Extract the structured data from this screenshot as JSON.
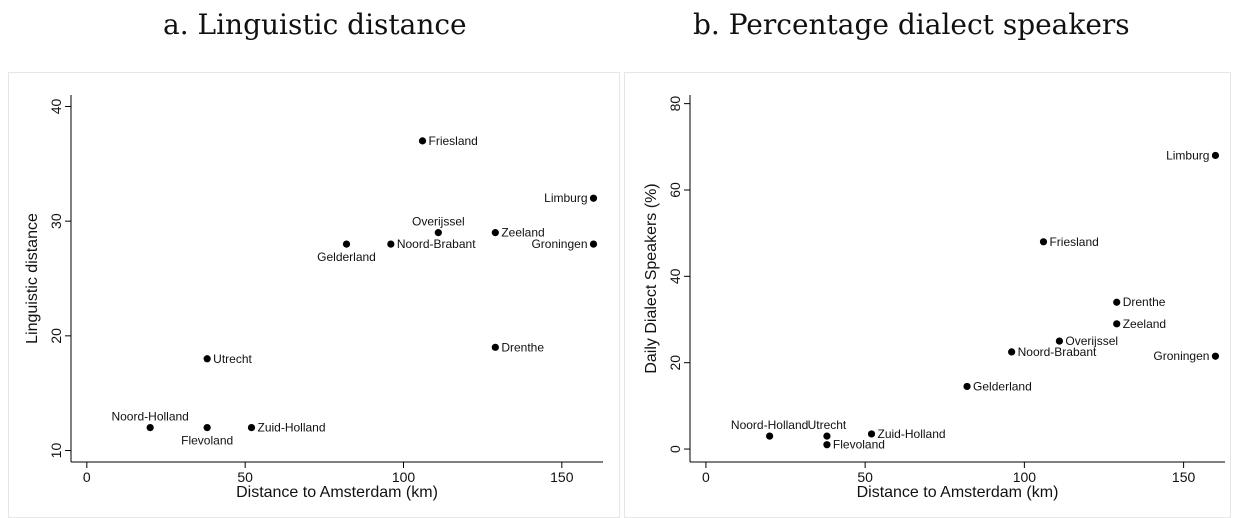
{
  "panels": {
    "a": {
      "title": "a. Linguistic distance"
    },
    "b": {
      "title": "b. Percentage dialect speakers"
    }
  },
  "colors": {
    "marker": "#000000",
    "axis": "#000000",
    "border": "#e6e6e6",
    "background": "#ffffff"
  },
  "chart_data": [
    {
      "type": "scatter",
      "xlabel": "Distance to Amsterdam (km)",
      "ylabel": "Linguistic distance",
      "xlim": [
        -5,
        163
      ],
      "ylim": [
        9,
        41
      ],
      "xticks": [
        0,
        50,
        100,
        150
      ],
      "yticks": [
        10,
        20,
        30,
        40
      ],
      "grid": false,
      "points": [
        {
          "label": "Friesland",
          "x": 106,
          "y": 37,
          "label_pos": "right"
        },
        {
          "label": "Limburg",
          "x": 160,
          "y": 32,
          "label_pos": "left"
        },
        {
          "label": "Overijssel",
          "x": 111,
          "y": 29,
          "label_pos": "above"
        },
        {
          "label": "Zeeland",
          "x": 129,
          "y": 29,
          "label_pos": "right"
        },
        {
          "label": "Gelderland",
          "x": 82,
          "y": 28,
          "label_pos": "below"
        },
        {
          "label": "Noord-Brabant",
          "x": 96,
          "y": 28,
          "label_pos": "right"
        },
        {
          "label": "Groningen",
          "x": 160,
          "y": 28,
          "label_pos": "left"
        },
        {
          "label": "Drenthe",
          "x": 129,
          "y": 19,
          "label_pos": "right"
        },
        {
          "label": "Utrecht",
          "x": 38,
          "y": 18,
          "label_pos": "right"
        },
        {
          "label": "Noord-Holland",
          "x": 20,
          "y": 12,
          "label_pos": "above"
        },
        {
          "label": "Flevoland",
          "x": 38,
          "y": 12,
          "label_pos": "below"
        },
        {
          "label": "Zuid-Holland",
          "x": 52,
          "y": 12,
          "label_pos": "right"
        }
      ]
    },
    {
      "type": "scatter",
      "xlabel": "Distance to Amsterdam (km)",
      "ylabel": "Daily Dialect Speakers (%)",
      "xlim": [
        -5,
        163
      ],
      "ylim": [
        -3,
        82
      ],
      "xticks": [
        0,
        50,
        100,
        150
      ],
      "yticks": [
        0,
        20,
        40,
        60,
        80
      ],
      "grid": false,
      "points": [
        {
          "label": "Limburg",
          "x": 160,
          "y": 68,
          "label_pos": "left"
        },
        {
          "label": "Friesland",
          "x": 106,
          "y": 48,
          "label_pos": "right"
        },
        {
          "label": "Drenthe",
          "x": 129,
          "y": 34,
          "label_pos": "right"
        },
        {
          "label": "Zeeland",
          "x": 129,
          "y": 29,
          "label_pos": "right"
        },
        {
          "label": "Overijssel",
          "x": 111,
          "y": 25,
          "label_pos": "right"
        },
        {
          "label": "Noord-Brabant",
          "x": 96,
          "y": 22.5,
          "label_pos": "right"
        },
        {
          "label": "Groningen",
          "x": 160,
          "y": 21.5,
          "label_pos": "left"
        },
        {
          "label": "Gelderland",
          "x": 82,
          "y": 14.5,
          "label_pos": "right"
        },
        {
          "label": "Noord-Holland",
          "x": 20,
          "y": 3,
          "label_pos": "above"
        },
        {
          "label": "Utrecht",
          "x": 38,
          "y": 3,
          "label_pos": "above"
        },
        {
          "label": "Zuid-Holland",
          "x": 52,
          "y": 3.5,
          "label_pos": "right"
        },
        {
          "label": "Flevoland",
          "x": 38,
          "y": 1,
          "label_pos": "right"
        }
      ]
    }
  ]
}
